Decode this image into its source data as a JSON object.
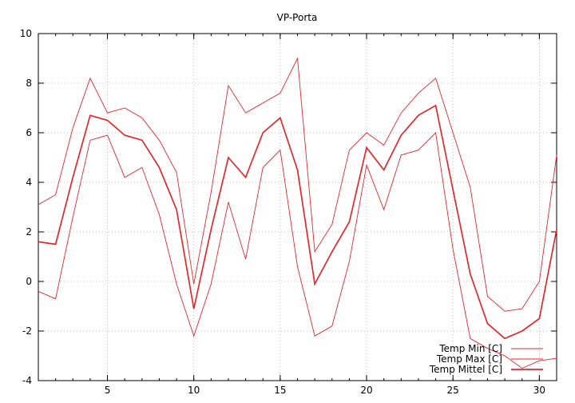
{
  "chart_data": {
    "type": "line",
    "title": "VP-Porta",
    "xlabel": "",
    "ylabel": "",
    "xlim": [
      1,
      31
    ],
    "ylim": [
      -4,
      10
    ],
    "xticks": [
      5,
      10,
      15,
      20,
      25,
      30
    ],
    "yticks": [
      -4,
      -2,
      0,
      2,
      4,
      6,
      8,
      10
    ],
    "grid": true,
    "legend_position": "bottom-right",
    "line_color": "#e0282e",
    "x": [
      1,
      2,
      3,
      4,
      5,
      6,
      7,
      8,
      9,
      10,
      11,
      12,
      13,
      14,
      15,
      16,
      17,
      18,
      19,
      20,
      21,
      22,
      23,
      24,
      25,
      26,
      27,
      28,
      29,
      30,
      31
    ],
    "series": [
      {
        "name": "Temp Min [C]",
        "values": [
          -0.4,
          -0.7,
          2.6,
          5.7,
          5.9,
          4.2,
          4.6,
          2.7,
          -0.1,
          -2.2,
          -0.1,
          3.2,
          0.9,
          4.6,
          5.3,
          0.6,
          -2.2,
          -1.8,
          0.8,
          4.7,
          2.9,
          5.1,
          5.3,
          6.0,
          1.3,
          -2.3,
          -2.7,
          -3.0,
          -3.5,
          -3.2,
          -3.1
        ]
      },
      {
        "name": "Temp Max [C]",
        "values": [
          3.1,
          3.5,
          6.2,
          8.2,
          6.8,
          7.0,
          6.6,
          5.7,
          4.4,
          -0.1,
          3.6,
          7.9,
          6.8,
          7.2,
          7.6,
          9.0,
          1.2,
          2.3,
          5.3,
          6.0,
          5.5,
          6.8,
          7.6,
          8.2,
          6.0,
          3.8,
          -0.6,
          -1.2,
          -1.1,
          0.0,
          5.1
        ]
      },
      {
        "name": "Temp Mittel [C]",
        "values": [
          1.6,
          1.5,
          4.2,
          6.7,
          6.5,
          5.9,
          5.7,
          4.6,
          2.9,
          -1.1,
          2.1,
          5.0,
          4.2,
          6.0,
          6.6,
          4.5,
          -0.1,
          1.2,
          2.4,
          5.4,
          4.5,
          5.9,
          6.7,
          7.1,
          3.7,
          0.3,
          -1.7,
          -2.3,
          -2.0,
          -1.5,
          2.1
        ]
      }
    ]
  }
}
